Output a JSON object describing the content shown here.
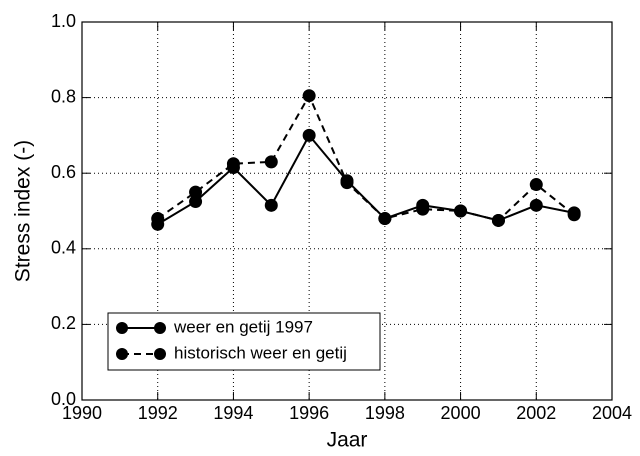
{
  "chart_data": {
    "type": "line",
    "xlabel": "Jaar",
    "ylabel": "Stress index (-)",
    "x": [
      1992,
      1993,
      1994,
      1995,
      1996,
      1997,
      1998,
      1999,
      2000,
      2001,
      2002,
      2003
    ],
    "series": [
      {
        "name": "weer en getij 1997",
        "color": "#000000",
        "line_style": "solid",
        "values": [
          0.465,
          0.525,
          0.615,
          0.515,
          0.7,
          0.58,
          0.48,
          0.515,
          0.5,
          0.475,
          0.515,
          0.495
        ]
      },
      {
        "name": "historisch weer en getij",
        "color": "#000000",
        "line_style": "dashed",
        "values": [
          0.48,
          0.55,
          0.625,
          0.63,
          0.805,
          0.575,
          0.48,
          0.505,
          0.5,
          0.475,
          0.57,
          0.49
        ]
      }
    ],
    "xlim": [
      1990,
      2004
    ],
    "xticks": [
      1990,
      1992,
      1994,
      1996,
      1998,
      2000,
      2002,
      2004
    ],
    "ylim": [
      0,
      1
    ],
    "yticks": [
      {
        "value": 0,
        "label": "0.0"
      },
      0.2,
      0.4,
      0.6,
      0.8,
      {
        "value": 1,
        "label": "1.0"
      }
    ],
    "grid": true,
    "legend": "lower left"
  }
}
